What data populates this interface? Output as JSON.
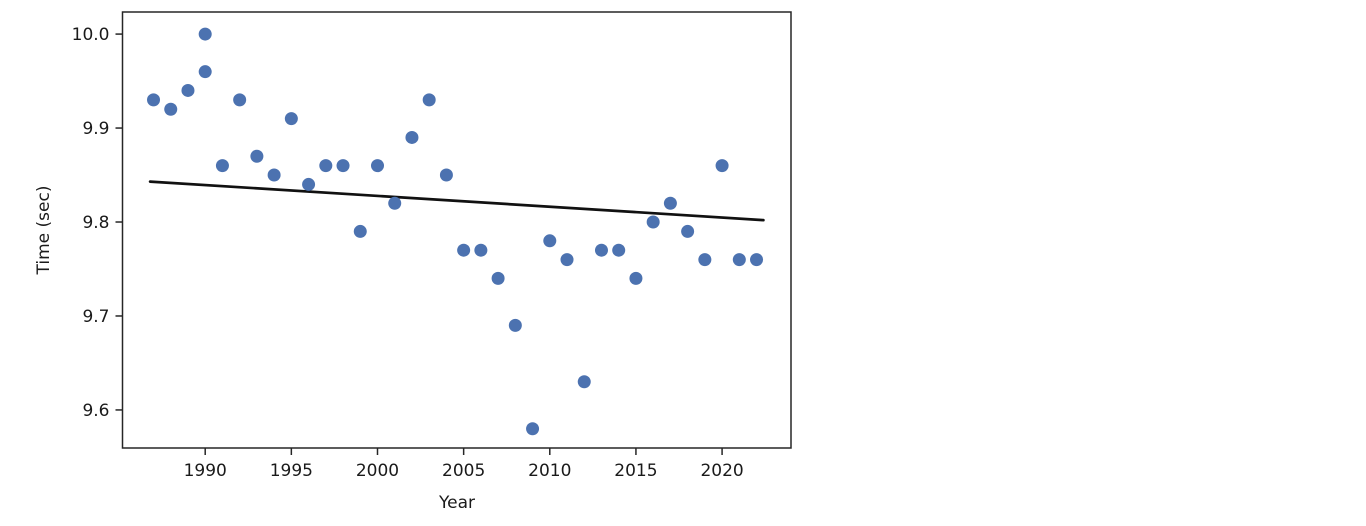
{
  "chart_data": {
    "type": "scatter",
    "title": "",
    "xlabel": "Year",
    "ylabel": "Time (sec)",
    "x_ticks": [
      {
        "label": "1990",
        "value": 1990
      },
      {
        "label": "1995",
        "value": 1995
      },
      {
        "label": "2000",
        "value": 2000
      },
      {
        "label": "2005",
        "value": 2005
      },
      {
        "label": "2010",
        "value": 2010
      },
      {
        "label": "2015",
        "value": 2015
      },
      {
        "label": "2020",
        "value": 2020
      }
    ],
    "y_ticks": [
      {
        "label": "10.0",
        "value": 10.0
      },
      {
        "label": "9.9",
        "value": 9.9
      },
      {
        "label": "9.8",
        "value": 9.8
      },
      {
        "label": "9.7",
        "value": 9.7
      },
      {
        "label": "9.6",
        "value": 9.6
      }
    ],
    "xlim": [
      1985.2,
      2024.0
    ],
    "ylim": [
      9.5595,
      10.0235
    ],
    "grid": false,
    "legend": null,
    "marker_color": "#4C72B0",
    "trend_color": "#111111",
    "axis_color": "#262626",
    "points": [
      [
        1987,
        9.93
      ],
      [
        1988,
        9.92
      ],
      [
        1989,
        9.94
      ],
      [
        1990,
        9.96
      ],
      [
        1990,
        10.0
      ],
      [
        1991,
        9.86
      ],
      [
        1992,
        9.93
      ],
      [
        1993,
        9.87
      ],
      [
        1994,
        9.85
      ],
      [
        1995,
        9.91
      ],
      [
        1996,
        9.84
      ],
      [
        1997,
        9.86
      ],
      [
        1998,
        9.86
      ],
      [
        1999,
        9.79
      ],
      [
        2000,
        9.86
      ],
      [
        2001,
        9.82
      ],
      [
        2002,
        9.89
      ],
      [
        2003,
        9.93
      ],
      [
        2004,
        9.85
      ],
      [
        2005,
        9.77
      ],
      [
        2006,
        9.77
      ],
      [
        2007,
        9.74
      ],
      [
        2008,
        9.69
      ],
      [
        2009,
        9.58
      ],
      [
        2010,
        9.78
      ],
      [
        2011,
        9.76
      ],
      [
        2012,
        9.63
      ],
      [
        2013,
        9.77
      ],
      [
        2014,
        9.77
      ],
      [
        2015,
        9.74
      ],
      [
        2016,
        9.8
      ],
      [
        2017,
        9.82
      ],
      [
        2018,
        9.79
      ],
      [
        2019,
        9.76
      ],
      [
        2020,
        9.86
      ],
      [
        2021,
        9.76
      ],
      [
        2022,
        9.76
      ]
    ],
    "trend_line": {
      "x1": 1986.8,
      "y1": 9.843,
      "x2": 2022.4,
      "y2": 9.802
    }
  }
}
